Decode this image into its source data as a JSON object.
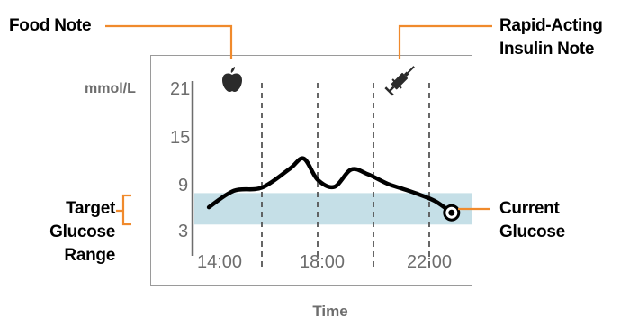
{
  "callouts": {
    "food_note": "Food Note",
    "insulin_note_line1": "Rapid-Acting",
    "insulin_note_line2": "Insulin Note",
    "target_range_line1": "Target",
    "target_range_line2": "Glucose",
    "target_range_line3": "Range",
    "current_glucose_line1": "Current",
    "current_glucose_line2": "Glucose"
  },
  "icons": {
    "food": "apple-icon",
    "insulin": "syringe-icon"
  },
  "colors": {
    "accent_orange": "#f08a2c",
    "target_band": "#c5dfe7",
    "axis_gray": "#6d6d6d",
    "frame_gray": "#9a9a9a"
  },
  "chart_data": {
    "type": "line",
    "ylabel": "mmol/L",
    "xlabel": "Time",
    "y_ticks": [
      "21",
      "15",
      "9",
      "3"
    ],
    "x_ticks": [
      "14:00",
      "18:00",
      "22:00"
    ],
    "ylim": [
      3,
      21
    ],
    "target_range": [
      4,
      8
    ],
    "x": [
      14.1,
      15.0,
      16.0,
      17.0,
      17.5,
      18.0,
      18.6,
      19.2,
      19.8,
      20.5,
      21.0,
      21.5,
      22.2,
      22.8
    ],
    "values": [
      6.2,
      8.3,
      8.7,
      11.1,
      12.4,
      9.7,
      8.8,
      11.0,
      10.4,
      9.2,
      8.6,
      8.0,
      7.0,
      5.5
    ],
    "grid_x": [
      16.0,
      18.0,
      20.0,
      22.0
    ],
    "food_note_time": 16.0,
    "insulin_note_time": 21.0
  }
}
